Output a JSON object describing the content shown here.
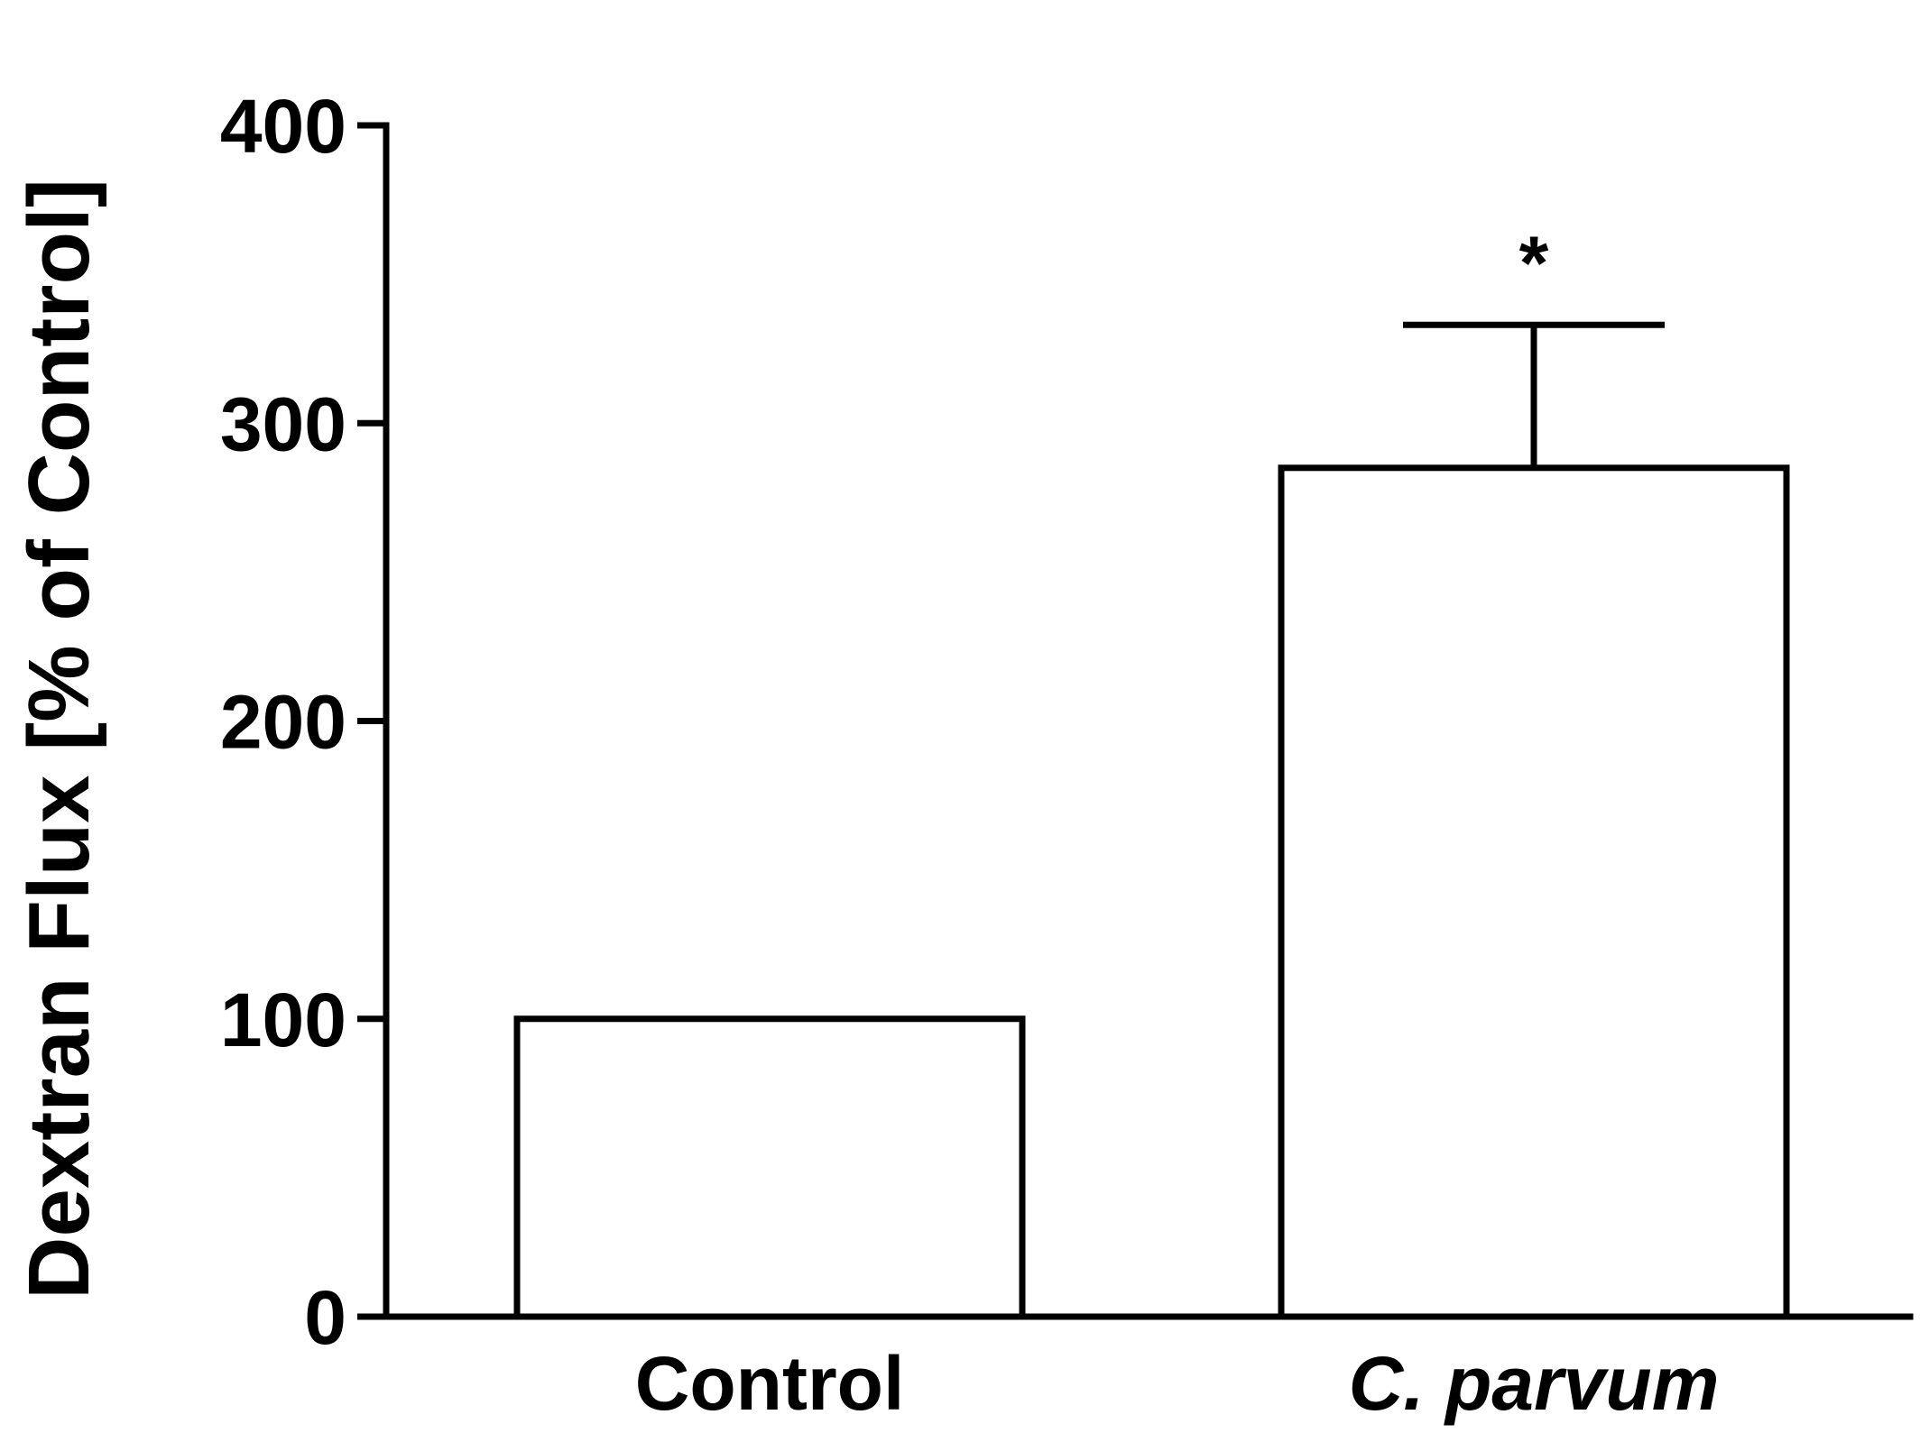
{
  "chart_data": {
    "type": "bar",
    "title": "",
    "xlabel": "",
    "ylabel": "Dextran Flux [% of Control]",
    "ylim": [
      0,
      400
    ],
    "yticks": [
      0,
      100,
      200,
      300,
      400
    ],
    "ytick_labels": [
      "0",
      "100",
      "200",
      "300",
      "400"
    ],
    "categories": [
      "Control",
      "C. parvum"
    ],
    "category_italic": [
      false,
      true
    ],
    "values": [
      100,
      285
    ],
    "error_upper": [
      null,
      333
    ],
    "annotations": [
      null,
      "*"
    ],
    "grid": false,
    "legend": "none",
    "colors": {
      "bar_fill": "#ffffff",
      "stroke": "#000000",
      "background": "#ffffff"
    }
  }
}
